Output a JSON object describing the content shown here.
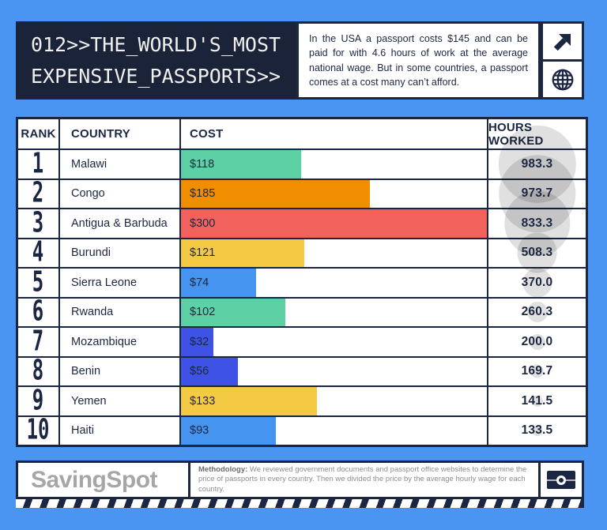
{
  "colors": {
    "background": "#4a95f2",
    "navy": "#1b2742",
    "teal": "#5dd0a6",
    "orange": "#f18e00",
    "red": "#f2625d",
    "yellow": "#f4ca45",
    "royal_blue": "#3e53e6",
    "bright_blue": "#4494f0",
    "bubble_gray": "rgba(0,0,0,0.12)",
    "logo_gray": "#a6a6a6"
  },
  "header": {
    "title_line1": "012>>THE_WORLD'S_MOST",
    "title_line2": "EXPENSIVE_PASSPORTS>>",
    "description": "In the USA a passport costs $145 and can be paid for with 4.6 hours of work at the average national wage. But in some countries, a passport comes at a cost many can’t afford.",
    "icons": [
      "arrow-up-right-icon",
      "globe-icon"
    ]
  },
  "table": {
    "columns": [
      "RANK",
      "COUNTRY",
      "COST",
      "HOURS WORKED"
    ],
    "max_cost": 300,
    "rows": [
      {
        "rank": "1",
        "country": "Malawi",
        "cost_label": "$118",
        "cost": 118,
        "hours": "983.3",
        "hours_value": 983.3,
        "color": "#5dd0a6"
      },
      {
        "rank": "2",
        "country": "Congo",
        "cost_label": "$185",
        "cost": 185,
        "hours": "973.7",
        "hours_value": 973.7,
        "color": "#f18e00"
      },
      {
        "rank": "3",
        "country": "Antigua & Barbuda",
        "cost_label": "$300",
        "cost": 300,
        "hours": "833.3",
        "hours_value": 833.3,
        "color": "#f2625d"
      },
      {
        "rank": "4",
        "country": "Burundi",
        "cost_label": "$121",
        "cost": 121,
        "hours": "508.3",
        "hours_value": 508.3,
        "color": "#f4ca45"
      },
      {
        "rank": "5",
        "country": "Sierra Leone",
        "cost_label": "$74",
        "cost": 74,
        "hours": "370.0",
        "hours_value": 370.0,
        "color": "#4494f0"
      },
      {
        "rank": "6",
        "country": "Rwanda",
        "cost_label": "$102",
        "cost": 102,
        "hours": "260.3",
        "hours_value": 260.3,
        "color": "#5dd0a6"
      },
      {
        "rank": "7",
        "country": "Mozambique",
        "cost_label": "$32",
        "cost": 32,
        "hours": "200.0",
        "hours_value": 200.0,
        "color": "#3e53e6"
      },
      {
        "rank": "8",
        "country": "Benin",
        "cost_label": "$56",
        "cost": 56,
        "hours": "169.7",
        "hours_value": 169.7,
        "color": "#3e53e6"
      },
      {
        "rank": "9",
        "country": "Yemen",
        "cost_label": "$133",
        "cost": 133,
        "hours": "141.5",
        "hours_value": 141.5,
        "color": "#f4ca45"
      },
      {
        "rank": "10",
        "country": "Haiti",
        "cost_label": "$93",
        "cost": 93,
        "hours": "133.5",
        "hours_value": 133.5,
        "color": "#4494f0"
      }
    ]
  },
  "footer": {
    "logo": "SavingSpot",
    "methodology_label": "Methodology:",
    "methodology_text": " We reviewed government documents and passport office websites to determine the price of passports in every country. Then we divided the price by the average hourly wage for each country."
  },
  "chart_data": {
    "type": "bar",
    "title": "012>>THE_WORLD'S_MOST EXPENSIVE_PASSPORTS>>",
    "subtitle": "In the USA a passport costs $145 and can be paid for with 4.6 hours of work at the average national wage. But in some countries, a passport comes at a cost many can’t afford.",
    "categories": [
      "Malawi",
      "Congo",
      "Antigua & Barbuda",
      "Burundi",
      "Sierra Leone",
      "Rwanda",
      "Mozambique",
      "Benin",
      "Yemen",
      "Haiti"
    ],
    "series": [
      {
        "name": "Cost (USD)",
        "values": [
          118,
          185,
          300,
          121,
          74,
          102,
          32,
          56,
          133,
          93
        ]
      },
      {
        "name": "Hours worked",
        "values": [
          983.3,
          973.7,
          833.3,
          508.3,
          370.0,
          260.3,
          200.0,
          169.7,
          141.5,
          133.5
        ]
      }
    ],
    "xlabel": "COST",
    "ylabel": "COUNTRY",
    "xlim": [
      0,
      300
    ],
    "grid": false,
    "legend_position": "none",
    "orientation": "horizontal"
  }
}
